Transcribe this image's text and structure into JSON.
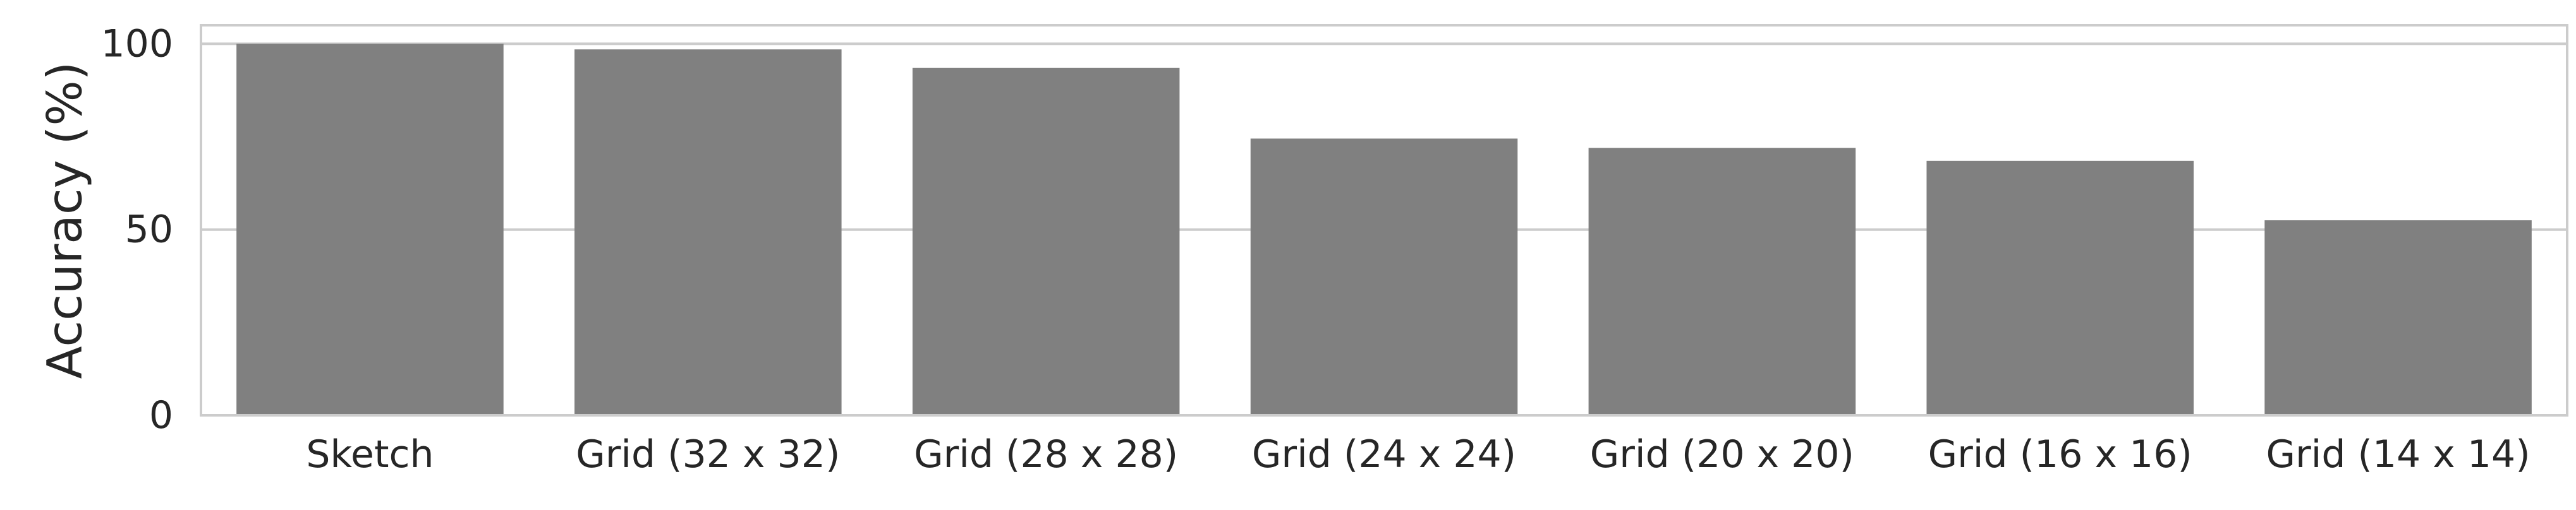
{
  "chart_data": {
    "type": "bar",
    "title": "",
    "xlabel": "",
    "ylabel": "Accuracy (%)",
    "categories": [
      "Sketch",
      "Grid (32 x 32)",
      "Grid (28 x 28)",
      "Grid (24 x 24)",
      "Grid (20 x 20)",
      "Grid (16 x 16)",
      "Grid (14 x 14)"
    ],
    "values": [
      100,
      98.5,
      93.5,
      74.5,
      72,
      68.5,
      52.5
    ],
    "ylim": [
      0,
      105
    ],
    "yticks": [
      0,
      50,
      100
    ],
    "grid": true,
    "legend": "none",
    "bar_color": "#808080",
    "grid_color": "#cccccc",
    "text_color": "#262626"
  }
}
